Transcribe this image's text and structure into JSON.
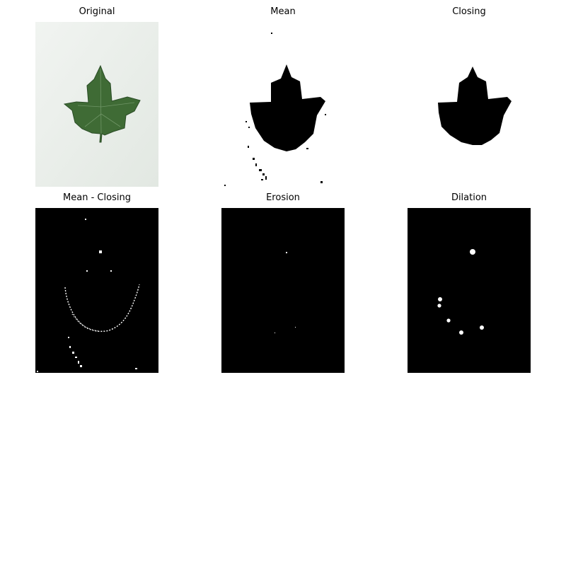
{
  "figure": {
    "panels": [
      {
        "title": "Original"
      },
      {
        "title": "Mean"
      },
      {
        "title": "Closing"
      },
      {
        "title": "Mean - Closing"
      },
      {
        "title": "Erosion"
      },
      {
        "title": "Dilation"
      }
    ]
  },
  "colors": {
    "background": "#ffffff",
    "mask_black": "#000000",
    "mask_white": "#ffffff",
    "leaf_green": "#3f6b35",
    "leaf_dark": "#2b4d27",
    "paper": "#e9eeea"
  }
}
